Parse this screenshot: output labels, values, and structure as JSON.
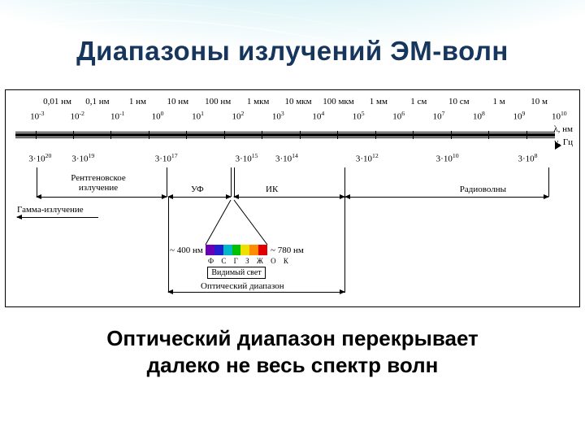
{
  "title": "Диапазоны излучений ЭМ-волн",
  "caption_line1": "Оптический диапазон перекрывает",
  "caption_line2": "далеко не весь спектр волн",
  "chart": {
    "wavelength_units": [
      "0,01 нм",
      "0,1 нм",
      "1 нм",
      "10 нм",
      "100 нм",
      "1 мкм",
      "10 мкм",
      "100 мкм",
      "1 мм",
      "1 см",
      "10 см",
      "1 м",
      "10 м"
    ],
    "lambda_exponents": [
      -3,
      -2,
      -1,
      0,
      1,
      2,
      3,
      4,
      5,
      6,
      7,
      8,
      9,
      10
    ],
    "lambda_axis_label": "λ, нм",
    "nu_axis_label": "ν, Гц",
    "freq_mantissa": "3·10",
    "freq_exponents": [
      20,
      19,
      17,
      15,
      14,
      12,
      10,
      8
    ],
    "freq_positions_pct": [
      6,
      13.5,
      28,
      42,
      49,
      63,
      77,
      91
    ],
    "bands": {
      "gamma": "Гамма-излучение",
      "xray_l1": "Рентгеновское",
      "xray_l2": "излучение",
      "uv": "УФ",
      "ir": "ИК",
      "radio": "Радиоволны"
    },
    "visible": {
      "left_nm": "~ 400 нм",
      "right_nm": "~ 780 нм",
      "letters": "Ф С Г З Ж О К",
      "label": "Видимый свет",
      "colors": [
        "#6a00b5",
        "#2020d0",
        "#00b8c8",
        "#00c000",
        "#f0e000",
        "#ff8c00",
        "#e00000"
      ]
    },
    "optical_label": "Оптический диапазон",
    "tick_pct_start": 5.5,
    "tick_pct_step": 7.0
  },
  "style": {
    "title_color": "#17365d",
    "chart_border": "#000000",
    "bg_top": "#8ae0ea",
    "bg_bottom": "#d4a8dc"
  }
}
